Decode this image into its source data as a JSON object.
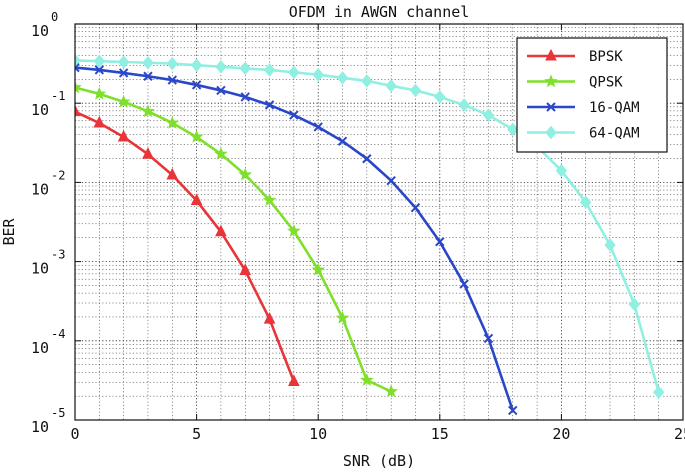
{
  "chart_data": {
    "type": "line",
    "title": "OFDM in AWGN channel",
    "xlabel": "SNR (dB)",
    "ylabel": "BER",
    "xlim": [
      0,
      25
    ],
    "ylim": [
      1e-05,
      1
    ],
    "yscale": "log",
    "grid": true,
    "legend_position": "top-right",
    "x_ticks": [
      "0",
      "5",
      "10",
      "15",
      "20",
      "25"
    ],
    "y_ticks": [
      {
        "base": "10",
        "exp": "0"
      },
      {
        "base": "10",
        "exp": "-1"
      },
      {
        "base": "10",
        "exp": "-2"
      },
      {
        "base": "10",
        "exp": "-3"
      },
      {
        "base": "10",
        "exp": "-4"
      },
      {
        "base": "10",
        "exp": "-5"
      }
    ],
    "series": [
      {
        "name": "BPSK",
        "color": "#e8353a",
        "marker": "triangle",
        "x": [
          0,
          1,
          2,
          3,
          4,
          5,
          6,
          7,
          8,
          9
        ],
        "y": [
          0.0782,
          0.0562,
          0.0374,
          0.0227,
          0.0124,
          0.0059,
          0.00238,
          0.000772,
          0.000188,
          3.06e-05
        ]
      },
      {
        "name": "QPSK",
        "color": "#7ee02a",
        "marker": "star",
        "x": [
          0,
          1,
          2,
          3,
          4,
          5,
          6,
          7,
          8,
          9,
          10,
          11,
          12,
          13
        ],
        "y": [
          0.158,
          0.131,
          0.104,
          0.0789,
          0.0563,
          0.0375,
          0.0228,
          0.0125,
          0.00595,
          0.00243,
          0.000787,
          0.000194,
          3.18e-05,
          2.29e-05
        ]
      },
      {
        "name": "16-QAM",
        "color": "#2b47c9",
        "marker": "x",
        "x": [
          0,
          1,
          2,
          3,
          4,
          5,
          6,
          7,
          8,
          9,
          10,
          11,
          12,
          13,
          14,
          15,
          16,
          17,
          18
        ],
        "y": [
          0.282,
          0.263,
          0.241,
          0.219,
          0.196,
          0.17,
          0.145,
          0.12,
          0.095,
          0.0708,
          0.0501,
          0.0331,
          0.0199,
          0.0105,
          0.00479,
          0.00178,
          0.00052,
          0.000107,
          1.32e-05
        ]
      },
      {
        "name": "64-QAM",
        "color": "#8ff0e2",
        "marker": "diamond",
        "x": [
          0,
          1,
          2,
          3,
          4,
          5,
          6,
          7,
          8,
          9,
          10,
          11,
          12,
          13,
          14,
          15,
          16,
          17,
          18,
          19,
          20,
          21,
          22,
          23,
          24
        ],
        "y": [
          0.347,
          0.339,
          0.331,
          0.324,
          0.316,
          0.302,
          0.288,
          0.275,
          0.263,
          0.245,
          0.229,
          0.209,
          0.191,
          0.166,
          0.145,
          0.12,
          0.095,
          0.0708,
          0.0468,
          0.0282,
          0.0141,
          0.00562,
          0.00162,
          0.000288,
          2.24e-05
        ]
      }
    ]
  }
}
